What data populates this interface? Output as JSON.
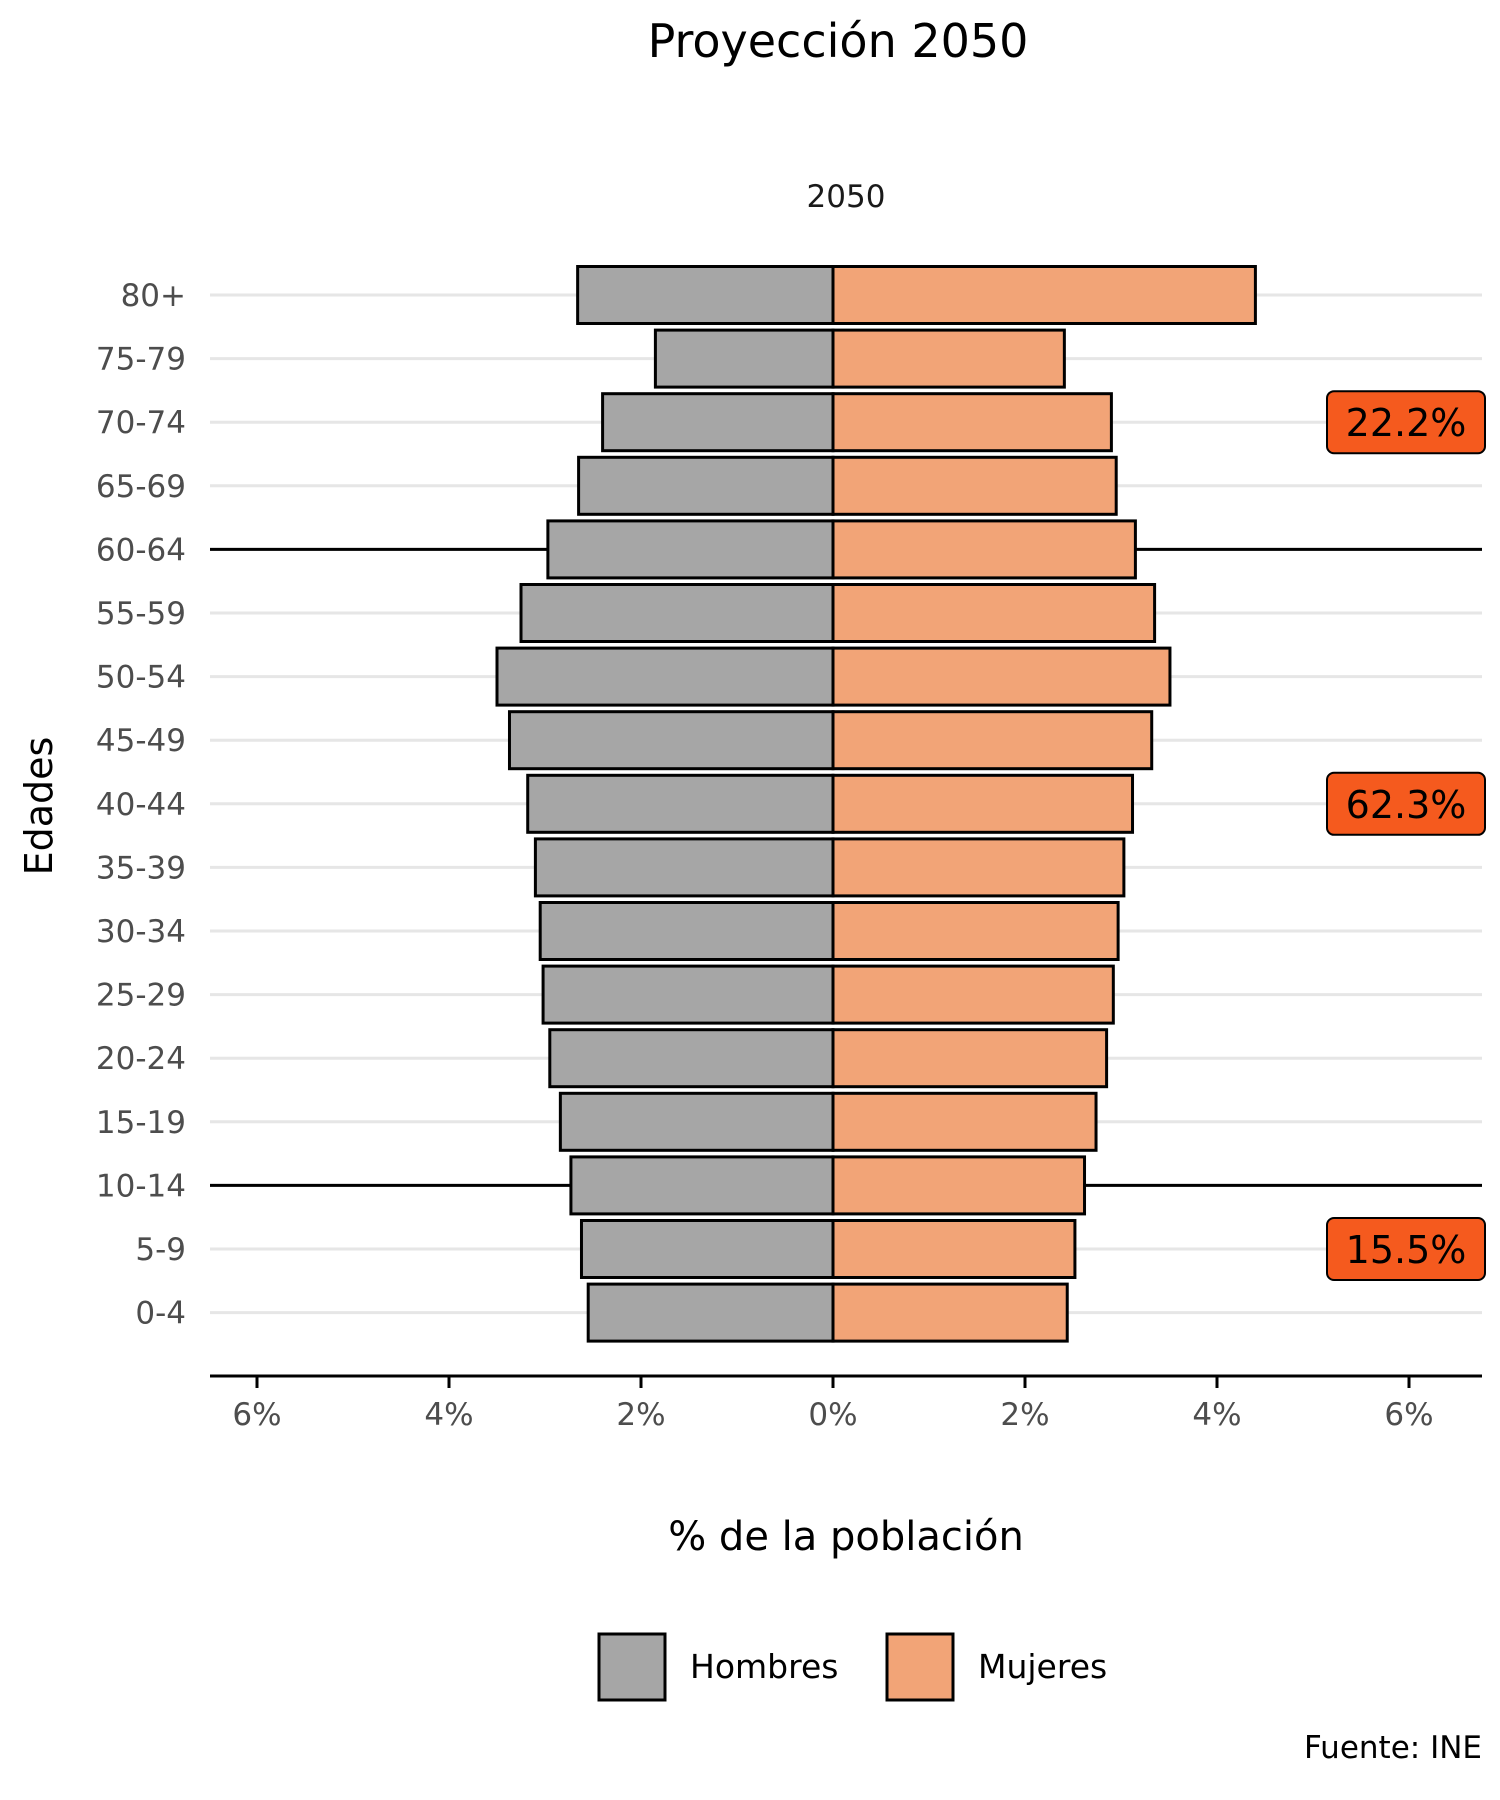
{
  "chart_data": {
    "type": "bar",
    "orientation": "horizontal",
    "title": "Proyección 2050",
    "facet_label": "2050",
    "xlabel": "% de la población",
    "ylabel": "Edades",
    "xlim": [
      -6.5,
      6.8
    ],
    "x_ticks": [
      -6,
      -4,
      -2,
      0,
      2,
      4,
      6
    ],
    "x_tick_labels": [
      "6%",
      "4%",
      "2%",
      "0%",
      "2%",
      "4%",
      "6%"
    ],
    "categories": [
      "0-4",
      "5-9",
      "10-14",
      "15-19",
      "20-24",
      "25-29",
      "30-34",
      "35-39",
      "40-44",
      "45-49",
      "50-54",
      "55-59",
      "60-64",
      "65-69",
      "70-74",
      "75-79",
      "80+"
    ],
    "series": [
      {
        "name": "Hombres",
        "color": "#a6a6a6",
        "direction": "left",
        "values": [
          2.55,
          2.62,
          2.73,
          2.84,
          2.95,
          3.02,
          3.05,
          3.1,
          3.18,
          3.37,
          3.5,
          3.25,
          2.97,
          2.65,
          2.4,
          1.85,
          2.66
        ]
      },
      {
        "name": "Mujeres",
        "color": "#f2a477",
        "direction": "right",
        "values": [
          2.44,
          2.52,
          2.62,
          2.74,
          2.85,
          2.92,
          2.97,
          3.03,
          3.12,
          3.32,
          3.51,
          3.35,
          3.15,
          2.95,
          2.9,
          2.41,
          4.4
        ]
      }
    ],
    "group_separators": [
      "10-14",
      "60-64"
    ],
    "annotations": [
      {
        "text": "22.2%",
        "category": "70-74",
        "color": "#f55a1e"
      },
      {
        "text": "62.3%",
        "category": "40-44",
        "color": "#f55a1e"
      },
      {
        "text": "15.5%",
        "category": "5-9",
        "color": "#f55a1e"
      }
    ],
    "legend": {
      "position": "bottom",
      "entries": [
        "Hombres",
        "Mujeres"
      ]
    },
    "grid": {
      "horizontal": true,
      "vertical": false
    },
    "caption": "Fuente: INE"
  }
}
